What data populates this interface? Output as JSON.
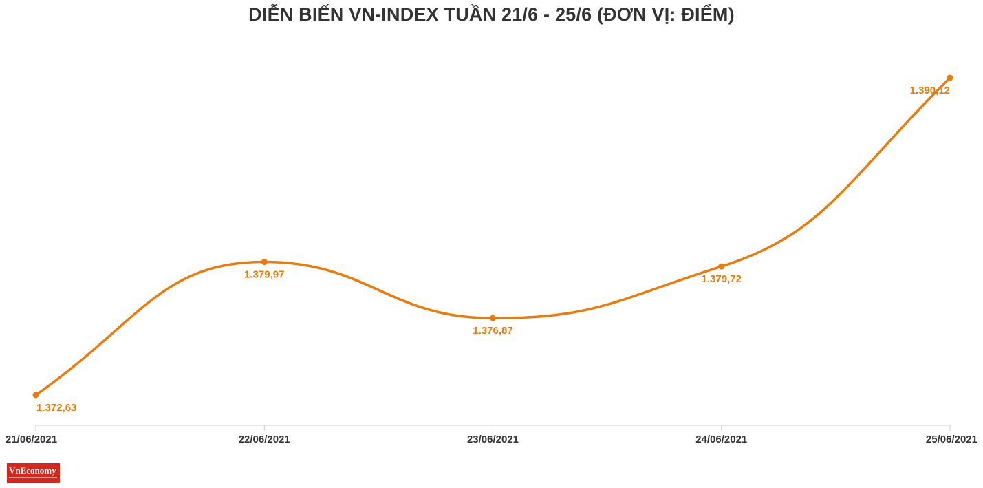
{
  "chart_data": {
    "type": "line",
    "title": "DIỄN BIẾN VN-INDEX TUẦN 21/6 - 25/6 (ĐƠN VỊ: ĐIỂM)",
    "categories": [
      "21/06/2021",
      "22/06/2021",
      "23/06/2021",
      "24/06/2021",
      "25/06/2021"
    ],
    "series": [
      {
        "values": [
          1372.63,
          1379.97,
          1376.87,
          1379.72,
          1390.12
        ],
        "labels": [
          "1.372,63",
          "1.379,97",
          "1.376,87",
          "1.379,72",
          "1.390,12"
        ]
      }
    ],
    "xlabel": "",
    "ylabel": "",
    "grid": false,
    "legend": "none",
    "colors": {
      "line": "#ec7a08",
      "label": "#ec7a08",
      "axis": "#cccccc",
      "tick_text": "#333333",
      "title": "#333333"
    }
  },
  "brand": {
    "logo_text": "VnEconomy",
    "logo_color": "#d8261c"
  }
}
